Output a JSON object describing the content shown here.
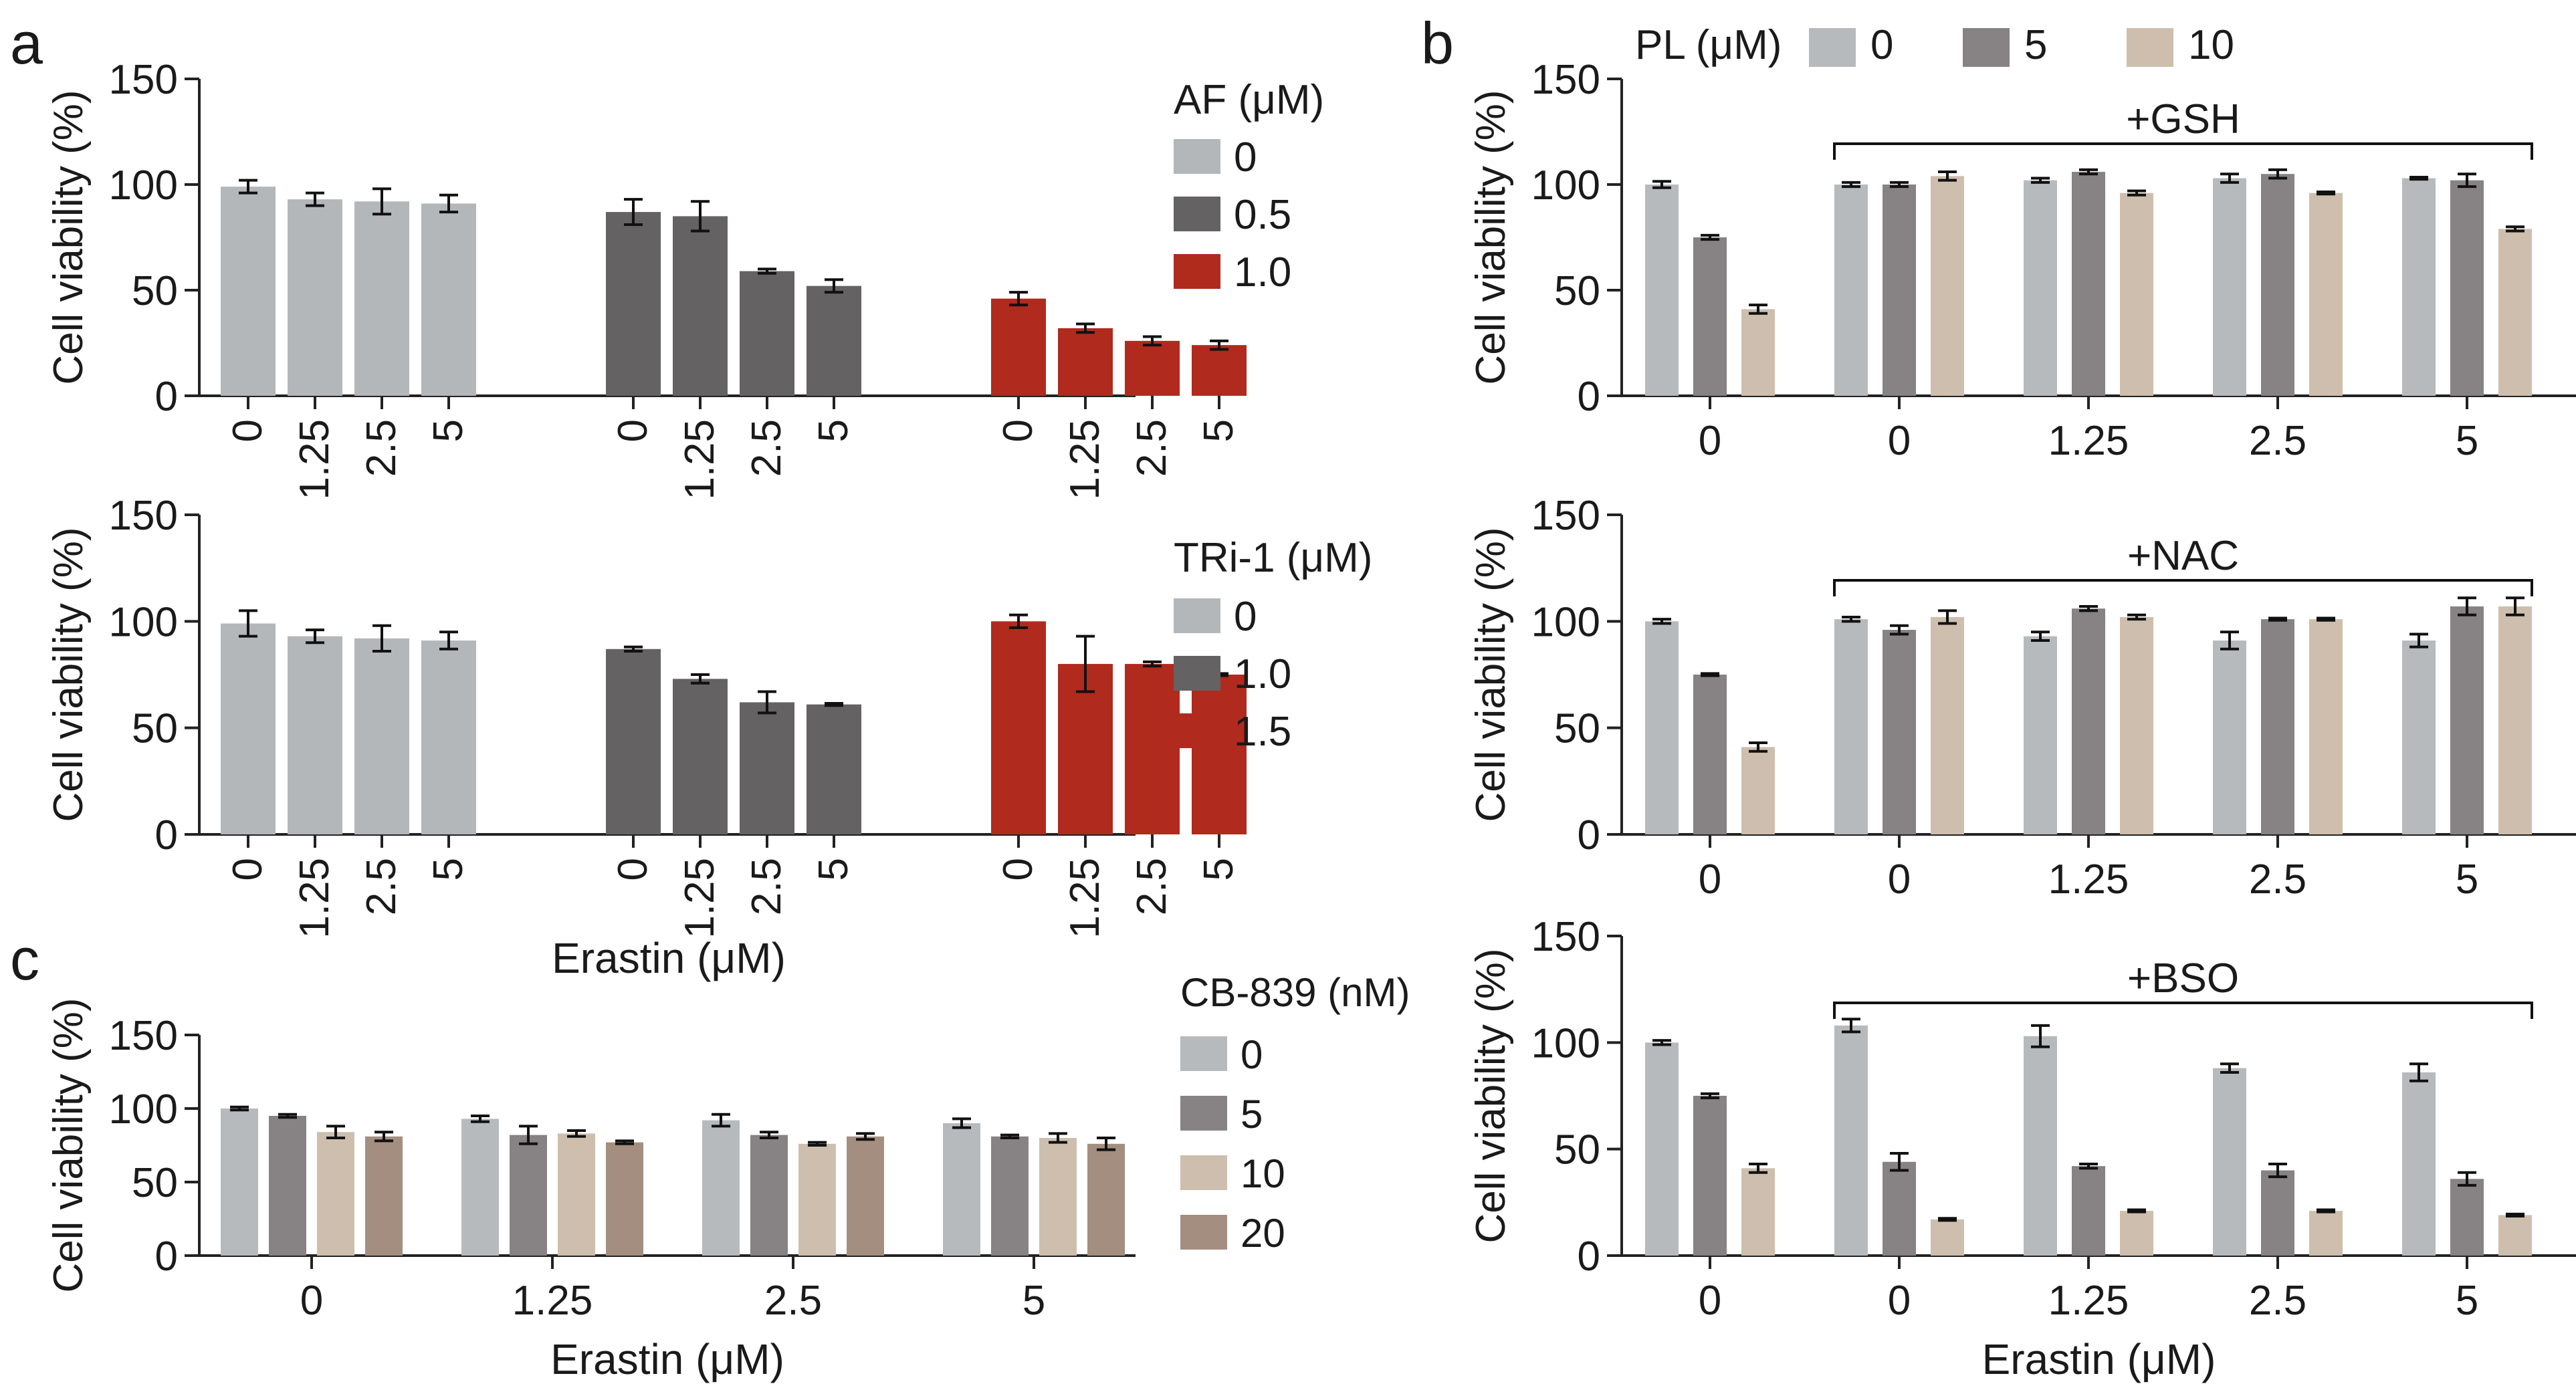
{
  "figure": {
    "panel_labels": [
      "a",
      "b",
      "c"
    ],
    "shared_xlabel_a": "Erastin (μM)"
  },
  "chart_data": [
    {
      "id": "a1",
      "type": "bar",
      "panel": "a",
      "title": "",
      "xlabel": "",
      "ylabel": "Cell viability (%)",
      "ylim": [
        0,
        150
      ],
      "yticks": [
        0,
        50,
        100,
        150
      ],
      "groups": [
        {
          "label": "AF 0 μM",
          "color": "#b3b7ba",
          "categories": [
            "0",
            "1.25",
            "2.5",
            "5"
          ],
          "values": [
            99,
            93,
            92,
            91
          ],
          "errors": [
            3,
            3,
            6,
            4
          ]
        },
        {
          "label": "AF 0.5 μM",
          "color": "#646262",
          "categories": [
            "0",
            "1.25",
            "2.5",
            "5"
          ],
          "values": [
            87,
            85,
            59,
            52
          ],
          "errors": [
            6,
            7,
            1,
            3
          ]
        },
        {
          "label": "AF 1.0 μM",
          "color": "#b02a1e",
          "categories": [
            "0",
            "1.25",
            "2.5",
            "5"
          ],
          "values": [
            46,
            32,
            26,
            24
          ],
          "errors": [
            3,
            2,
            2,
            2
          ]
        }
      ],
      "legend": {
        "title": "AF (μM)",
        "entries": [
          {
            "label": "0",
            "color": "#b3b7ba"
          },
          {
            "label": "0.5",
            "color": "#646262"
          },
          {
            "label": "1.0",
            "color": "#b02a1e"
          }
        ],
        "placement": "right"
      }
    },
    {
      "id": "a2",
      "type": "bar",
      "panel": "a",
      "title": "",
      "xlabel": "Erastin (μM)",
      "ylabel": "Cell viability (%)",
      "ylim": [
        0,
        150
      ],
      "yticks": [
        0,
        50,
        100,
        150
      ],
      "groups": [
        {
          "label": "TRi-1 0 μM",
          "color": "#b3b7ba",
          "categories": [
            "0",
            "1.25",
            "2.5",
            "5"
          ],
          "values": [
            99,
            93,
            92,
            91
          ],
          "errors": [
            6,
            3,
            6,
            4
          ]
        },
        {
          "label": "TRi-1 1.0 μM",
          "color": "#646262",
          "categories": [
            "0",
            "1.25",
            "2.5",
            "5"
          ],
          "values": [
            87,
            73,
            62,
            61
          ],
          "errors": [
            1,
            2,
            5,
            0.5
          ]
        },
        {
          "label": "TRi-1 1.5 μM",
          "color": "#b02a1e",
          "categories": [
            "0",
            "1.25",
            "2.5",
            "5"
          ],
          "values": [
            100,
            80,
            80,
            75
          ],
          "errors": [
            3,
            13,
            1,
            0.5
          ]
        }
      ],
      "legend": {
        "title": "TRi-1 (μM)",
        "entries": [
          {
            "label": "0",
            "color": "#b3b7ba"
          },
          {
            "label": "1.0",
            "color": "#646262"
          },
          {
            "label": "1.5",
            "color": "#b02a1e"
          }
        ],
        "placement": "right"
      }
    },
    {
      "id": "c",
      "type": "bar",
      "panel": "c",
      "title": "",
      "xlabel": "Erastin (μM)",
      "ylabel": "Cell viability (%)",
      "ylim": [
        0,
        150
      ],
      "yticks": [
        0,
        50,
        100,
        150
      ],
      "categories": [
        "0",
        "1.25",
        "2.5",
        "5"
      ],
      "series": [
        {
          "name": "0",
          "color": "#b6babd",
          "values": [
            100,
            93,
            92,
            90
          ],
          "errors": [
            1,
            2,
            4,
            3
          ]
        },
        {
          "name": "5",
          "color": "#878283",
          "values": [
            95,
            82,
            82,
            81
          ],
          "errors": [
            1,
            6,
            2,
            1
          ]
        },
        {
          "name": "10",
          "color": "#cdbeae",
          "values": [
            84,
            83,
            76,
            80
          ],
          "errors": [
            4,
            2,
            1,
            3
          ]
        },
        {
          "name": "20",
          "color": "#a48e80",
          "values": [
            81,
            77,
            81,
            76
          ],
          "errors": [
            3,
            1,
            2,
            4
          ]
        }
      ],
      "legend": {
        "title": "CB-839 (nM)",
        "entries": [
          {
            "label": "0",
            "color": "#b6babd"
          },
          {
            "label": "5",
            "color": "#878283"
          },
          {
            "label": "10",
            "color": "#cdbeae"
          },
          {
            "label": "20",
            "color": "#a48e80"
          }
        ],
        "placement": "right"
      }
    },
    {
      "id": "b1",
      "type": "bar",
      "panel": "b",
      "title": "",
      "xlabel": "",
      "ylabel": "Cell viability (%)",
      "ylim": [
        0,
        150
      ],
      "yticks": [
        0,
        50,
        100,
        150
      ],
      "categories": [
        "0",
        "0",
        "1.25",
        "2.5",
        "5"
      ],
      "bracket": {
        "label": "+GSH",
        "from_category": 1,
        "to_category": 4
      },
      "series": [
        {
          "name": "0",
          "color": "#b6babd",
          "values": [
            100,
            100,
            102,
            103,
            103
          ],
          "errors": [
            1.5,
            1,
            1,
            2,
            0.5
          ]
        },
        {
          "name": "5",
          "color": "#878283",
          "values": [
            75,
            100,
            106,
            105,
            102
          ],
          "errors": [
            1,
            1,
            1,
            2,
            3
          ]
        },
        {
          "name": "10",
          "color": "#cdbeae",
          "values": [
            41,
            104,
            96,
            96,
            79
          ],
          "errors": [
            2,
            2,
            1,
            0.5,
            1
          ]
        }
      ],
      "legend": {
        "title": "PL (μM)",
        "entries": [
          {
            "label": "0",
            "color": "#b6babd"
          },
          {
            "label": "5",
            "color": "#878283"
          },
          {
            "label": "10",
            "color": "#cdbeae"
          }
        ],
        "placement": "top"
      }
    },
    {
      "id": "b2",
      "type": "bar",
      "panel": "b",
      "title": "",
      "xlabel": "",
      "ylabel": "Cell viability (%)",
      "ylim": [
        0,
        150
      ],
      "yticks": [
        0,
        50,
        100,
        150
      ],
      "categories": [
        "0",
        "0",
        "1.25",
        "2.5",
        "5"
      ],
      "bracket": {
        "label": "+NAC",
        "from_category": 1,
        "to_category": 4
      },
      "series": [
        {
          "name": "0",
          "color": "#b6babd",
          "values": [
            100,
            101,
            93,
            91,
            91
          ],
          "errors": [
            1,
            1,
            2,
            4,
            3
          ]
        },
        {
          "name": "5",
          "color": "#878283",
          "values": [
            75,
            96,
            106,
            101,
            107
          ],
          "errors": [
            0.5,
            2,
            1,
            0.5,
            4
          ]
        },
        {
          "name": "10",
          "color": "#cdbeae",
          "values": [
            41,
            102,
            102,
            101,
            107
          ],
          "errors": [
            2,
            3,
            1,
            0.5,
            4
          ]
        }
      ]
    },
    {
      "id": "b3",
      "type": "bar",
      "panel": "b",
      "title": "",
      "xlabel": "Erastin (μM)",
      "ylabel": "Cell viability (%)",
      "ylim": [
        0,
        150
      ],
      "yticks": [
        0,
        50,
        100,
        150
      ],
      "categories": [
        "0",
        "0",
        "1.25",
        "2.5",
        "5"
      ],
      "bracket": {
        "label": "+BSO",
        "from_category": 1,
        "to_category": 4
      },
      "series": [
        {
          "name": "0",
          "color": "#b6babd",
          "values": [
            100,
            108,
            103,
            88,
            86
          ],
          "errors": [
            1,
            3,
            5,
            2,
            4
          ]
        },
        {
          "name": "5",
          "color": "#878283",
          "values": [
            75,
            44,
            42,
            40,
            36
          ],
          "errors": [
            1,
            4,
            1,
            3,
            3
          ]
        },
        {
          "name": "10",
          "color": "#cdbeae",
          "values": [
            41,
            17,
            21,
            21,
            19
          ],
          "errors": [
            2,
            0.5,
            0.5,
            0.5,
            0.5
          ]
        }
      ]
    }
  ]
}
